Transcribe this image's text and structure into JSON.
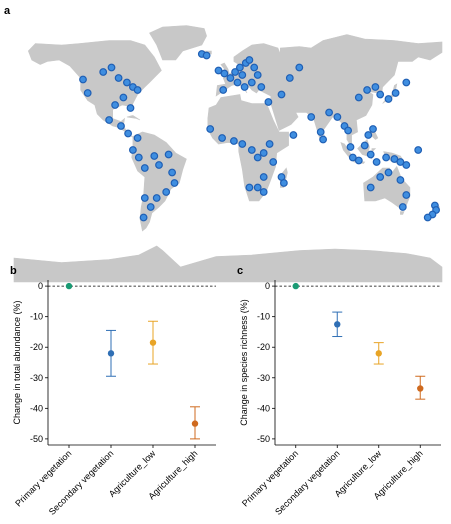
{
  "colors": {
    "land": "#c8c8c8",
    "site": "#1f5fb4",
    "site_fill": "#3f8ee0",
    "primary": "#1a9a73",
    "secondary": "#2f6fb5",
    "ag_low": "#e8a426",
    "ag_high": "#cf6a1f"
  },
  "map": {
    "label": "a",
    "sites": [
      [
        -122,
        47
      ],
      [
        -118,
        38
      ],
      [
        -105,
        52
      ],
      [
        -98,
        55
      ],
      [
        -92,
        48
      ],
      [
        -85,
        45
      ],
      [
        -80,
        42
      ],
      [
        -76,
        40
      ],
      [
        -88,
        35
      ],
      [
        -95,
        30
      ],
      [
        -82,
        28
      ],
      [
        -100,
        20
      ],
      [
        -90,
        16
      ],
      [
        -84,
        11
      ],
      [
        -76,
        8
      ],
      [
        -80,
        0
      ],
      [
        -75,
        -5
      ],
      [
        -70,
        -12
      ],
      [
        -62,
        -4
      ],
      [
        -58,
        -10
      ],
      [
        -50,
        -3
      ],
      [
        -47,
        -15
      ],
      [
        -45,
        -22
      ],
      [
        -52,
        -28
      ],
      [
        -60,
        -32
      ],
      [
        -65,
        -38
      ],
      [
        -71,
        -45
      ],
      [
        -70,
        -32
      ],
      [
        -22,
        64
      ],
      [
        -18,
        63
      ],
      [
        -8,
        53
      ],
      [
        -3,
        51
      ],
      [
        2,
        48
      ],
      [
        6,
        52
      ],
      [
        10,
        55
      ],
      [
        12,
        50
      ],
      [
        15,
        58
      ],
      [
        18,
        60
      ],
      [
        22,
        55
      ],
      [
        25,
        50
      ],
      [
        20,
        45
      ],
      [
        14,
        42
      ],
      [
        8,
        45
      ],
      [
        -4,
        40
      ],
      [
        28,
        42
      ],
      [
        34,
        32
      ],
      [
        45,
        37
      ],
      [
        52,
        48
      ],
      [
        60,
        55
      ],
      [
        -15,
        14
      ],
      [
        -5,
        8
      ],
      [
        5,
        6
      ],
      [
        12,
        4
      ],
      [
        20,
        0
      ],
      [
        25,
        -5
      ],
      [
        30,
        -2
      ],
      [
        35,
        4
      ],
      [
        38,
        -8
      ],
      [
        30,
        -18
      ],
      [
        25,
        -25
      ],
      [
        18,
        -25
      ],
      [
        30,
        -28
      ],
      [
        45,
        -18
      ],
      [
        47,
        -22
      ],
      [
        55,
        10
      ],
      [
        70,
        22
      ],
      [
        78,
        12
      ],
      [
        80,
        7
      ],
      [
        85,
        25
      ],
      [
        92,
        22
      ],
      [
        98,
        16
      ],
      [
        101,
        13
      ],
      [
        103,
        2
      ],
      [
        105,
        -5
      ],
      [
        110,
        -7
      ],
      [
        115,
        3
      ],
      [
        118,
        10
      ],
      [
        122,
        14
      ],
      [
        120,
        -3
      ],
      [
        125,
        -8
      ],
      [
        133,
        -5
      ],
      [
        140,
        -6
      ],
      [
        145,
        -8
      ],
      [
        150,
        -10
      ],
      [
        110,
        35
      ],
      [
        117,
        40
      ],
      [
        124,
        42
      ],
      [
        128,
        37
      ],
      [
        135,
        34
      ],
      [
        141,
        38
      ],
      [
        150,
        45
      ],
      [
        160,
        0
      ],
      [
        135,
        -15
      ],
      [
        128,
        -18
      ],
      [
        120,
        -25
      ],
      [
        145,
        -20
      ],
      [
        150,
        -30
      ],
      [
        147,
        -38
      ],
      [
        174,
        -37
      ],
      [
        175,
        -40
      ],
      [
        172,
        -43
      ],
      [
        168,
        -45
      ]
    ]
  },
  "chart_data": [
    {
      "type": "scatter",
      "label": "b",
      "ylabel": "Change in total abundance (%)",
      "categories": [
        "Primary vegetation",
        "Secondary vegetation",
        "Agriculture_low",
        "Agriculture_high"
      ],
      "values": [
        0,
        -22,
        -18.5,
        -45
      ],
      "ci_low": [
        0,
        -29.5,
        -25.5,
        -50
      ],
      "ci_high": [
        0,
        -14.5,
        -11.5,
        -39.5
      ],
      "ylim": [
        -52,
        2
      ],
      "yticks": [
        "0",
        "-10",
        "-20",
        "-30",
        "-40",
        "-50"
      ],
      "reference_line": 0
    },
    {
      "type": "scatter",
      "label": "c",
      "ylabel": "Change in species richness (%)",
      "categories": [
        "Primary vegetation",
        "Secondary vegetation",
        "Agriculture_low",
        "Agriculture_high"
      ],
      "values": [
        0,
        -12.5,
        -22,
        -33.5
      ],
      "ci_low": [
        0,
        -16.5,
        -25.5,
        -37
      ],
      "ci_high": [
        0,
        -8.5,
        -18.5,
        -29.5
      ],
      "ylim": [
        -52,
        2
      ],
      "yticks": [
        "0",
        "-10",
        "-20",
        "-30",
        "-40",
        "-50"
      ],
      "reference_line": 0
    }
  ]
}
